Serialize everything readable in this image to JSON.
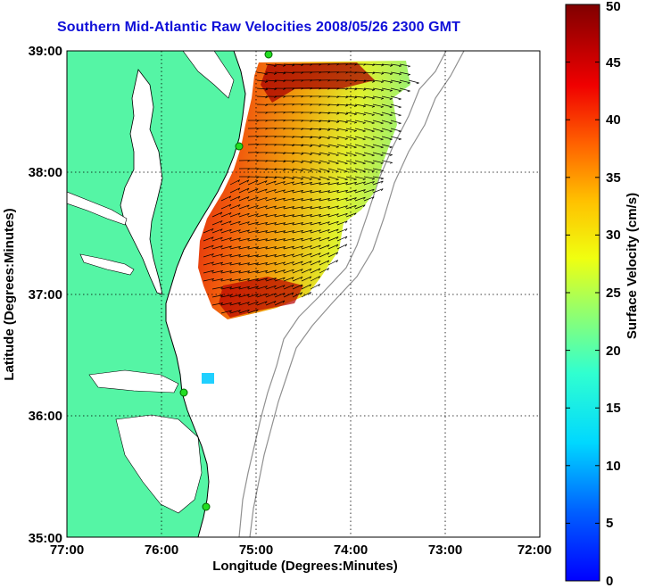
{
  "title": "Southern Mid-Atlantic Raw Velocities 2008/05/26 2300 GMT",
  "xlabel": "Longitude (Degrees:Minutes)",
  "ylabel": "Latitude (Degrees:Minutes)",
  "colorbar_label": "Surface Velocity (cm/s)",
  "x_ticks": [
    {
      "value": -77,
      "label": "77:00"
    },
    {
      "value": -76,
      "label": "76:00"
    },
    {
      "value": -75,
      "label": "75:00"
    },
    {
      "value": -74,
      "label": "74:00"
    },
    {
      "value": -73,
      "label": "73:00"
    },
    {
      "value": -72,
      "label": "72:00"
    }
  ],
  "y_ticks": [
    {
      "value": 35,
      "label": "35:00"
    },
    {
      "value": 36,
      "label": "36:00"
    },
    {
      "value": 37,
      "label": "37:00"
    },
    {
      "value": 38,
      "label": "38:00"
    },
    {
      "value": 39,
      "label": "39:00"
    }
  ],
  "colorbar_ticks": [
    {
      "value": 0,
      "label": "0"
    },
    {
      "value": 5,
      "label": "5"
    },
    {
      "value": 10,
      "label": "10"
    },
    {
      "value": 15,
      "label": "15"
    },
    {
      "value": 20,
      "label": "20"
    },
    {
      "value": 25,
      "label": "25"
    },
    {
      "value": 30,
      "label": "30"
    },
    {
      "value": 35,
      "label": "35"
    },
    {
      "value": 40,
      "label": "40"
    },
    {
      "value": 45,
      "label": "45"
    },
    {
      "value": 50,
      "label": "50"
    }
  ],
  "colors": {
    "land": "#55f5a5",
    "water": "#ffffff",
    "title": "#1010d8",
    "isobath": "#909090",
    "station": "#22dd22"
  }
}
